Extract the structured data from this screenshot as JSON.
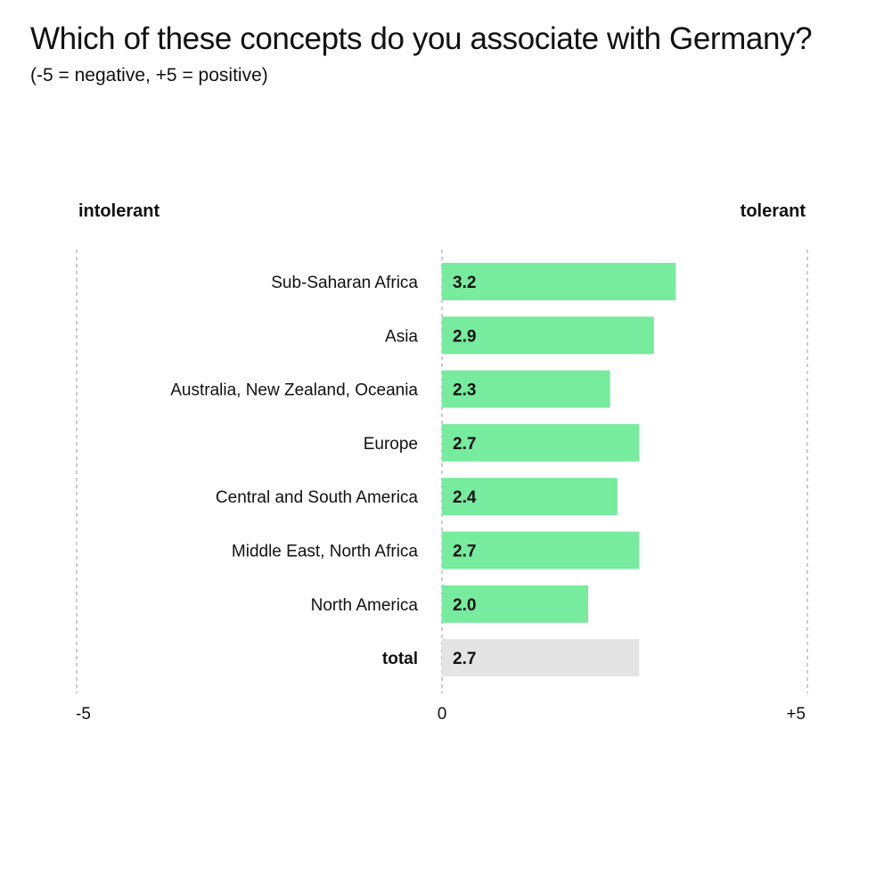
{
  "chart_data": {
    "type": "bar",
    "orientation": "horizontal",
    "title": "Which of these concepts do you associate with Germany?",
    "subtitle": "(-5 = negative, +5 = positive)",
    "left_label": "intolerant",
    "right_label": "tolerant",
    "xlim": [
      -5,
      5
    ],
    "x_ticks": [
      {
        "value": -5,
        "label": "-5"
      },
      {
        "value": 0,
        "label": "0"
      },
      {
        "value": 5,
        "label": "+5"
      }
    ],
    "grid": false,
    "categories": [
      "Sub-Saharan Africa",
      "Asia",
      "Australia, New Zealand, Oceania",
      "Europe",
      "Central and South America",
      "Middle East, North Africa",
      "North America",
      "total"
    ],
    "values": [
      3.2,
      2.9,
      2.3,
      2.7,
      2.4,
      2.7,
      2.0,
      2.7
    ],
    "value_labels": [
      "3.2",
      "2.9",
      "2.3",
      "2.7",
      "2.4",
      "2.7",
      "2.0",
      "2.7"
    ],
    "highlight_category": "total",
    "colors": {
      "bar": "#77eb9e",
      "total_bar": "#e4e4e4",
      "reference_line": "#9a9a9a"
    }
  }
}
